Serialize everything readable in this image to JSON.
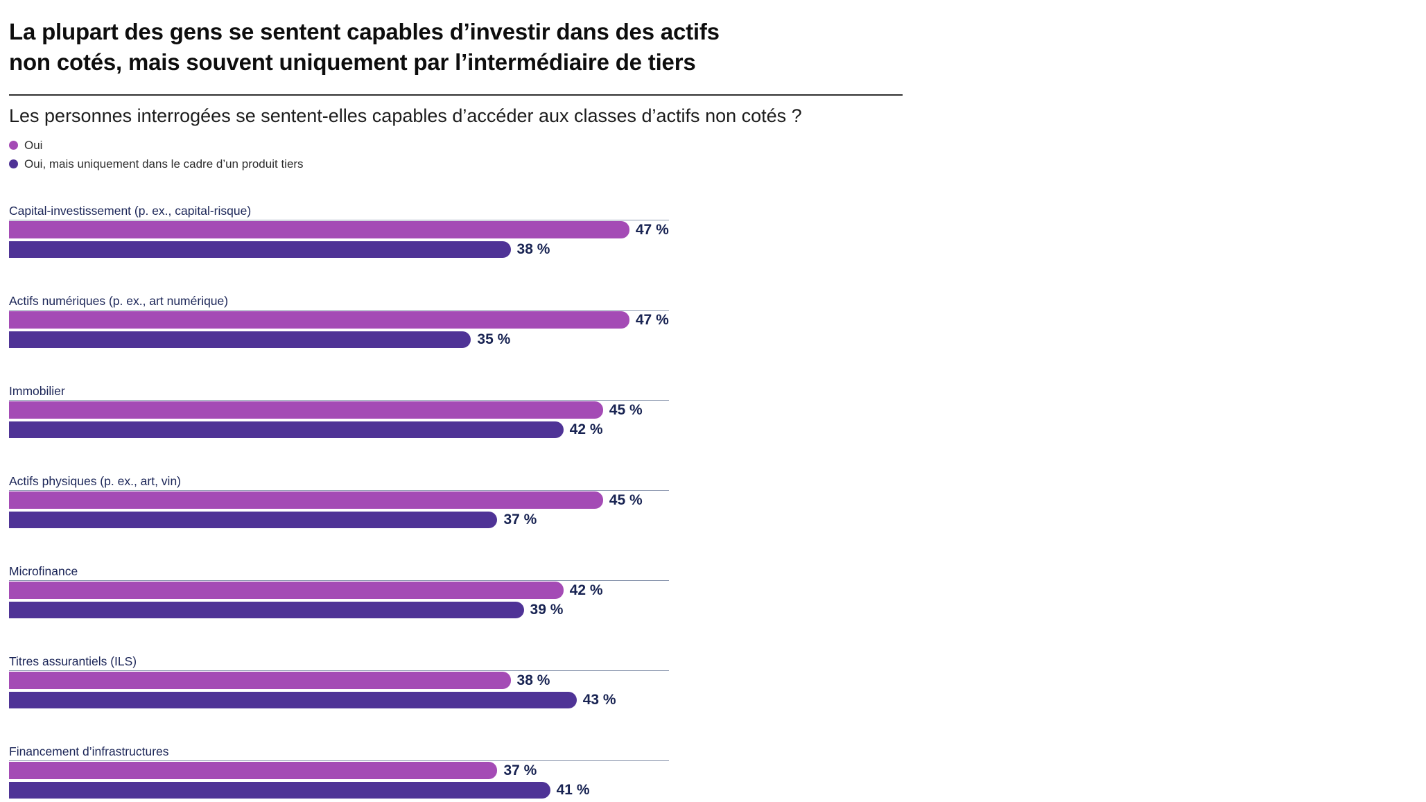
{
  "page": {
    "title": "La plupart des gens se sentent capables d’investir dans des actifs\nnon cotés, mais souvent uniquement par l’intermédiaire de tiers",
    "subtitle": "Les personnes interrogées se sentent-elles capables d’accéder aux classes d’actifs non cotés ?"
  },
  "colors": {
    "series_oui": "#A44BB5",
    "series_oui_tiers": "#4F3396",
    "label_navy": "#1B2557",
    "axis_line": "#8995AD",
    "title_text": "#0D0D0D",
    "rule": "#2E2E2E"
  },
  "chart_data": {
    "type": "bar",
    "orientation": "horizontal",
    "title": "La plupart des gens se sentent capables d’investir dans des actifs non cotés, mais souvent uniquement par l’intermédiaire de tiers",
    "subtitle": "Les personnes interrogées se sentent-elles capables d’accéder aux classes d’actifs non cotés ?",
    "categories": [
      "Capital-investissement (p. ex., capital-risque)",
      "Actifs numériques (p. ex., art numérique)",
      "Immobilier",
      "Actifs physiques (p. ex., art, vin)",
      "Microfinance",
      "Titres assurantiels (ILS)",
      "Financement d’infrastructures"
    ],
    "series": [
      {
        "name": "Oui",
        "color": "#A44BB5",
        "values": [
          47,
          47,
          45,
          45,
          42,
          38,
          37
        ]
      },
      {
        "name": "Oui, mais uniquement dans le cadre d’un produit tiers",
        "color": "#4F3396",
        "values": [
          38,
          35,
          42,
          37,
          39,
          43,
          41
        ]
      }
    ],
    "xlim": [
      0,
      50
    ],
    "value_suffix": " %",
    "value_labels": "shown at end of each bar",
    "legend_position": "top-left",
    "grid": "thin axis line above each category group",
    "xlabel": "",
    "ylabel": ""
  }
}
